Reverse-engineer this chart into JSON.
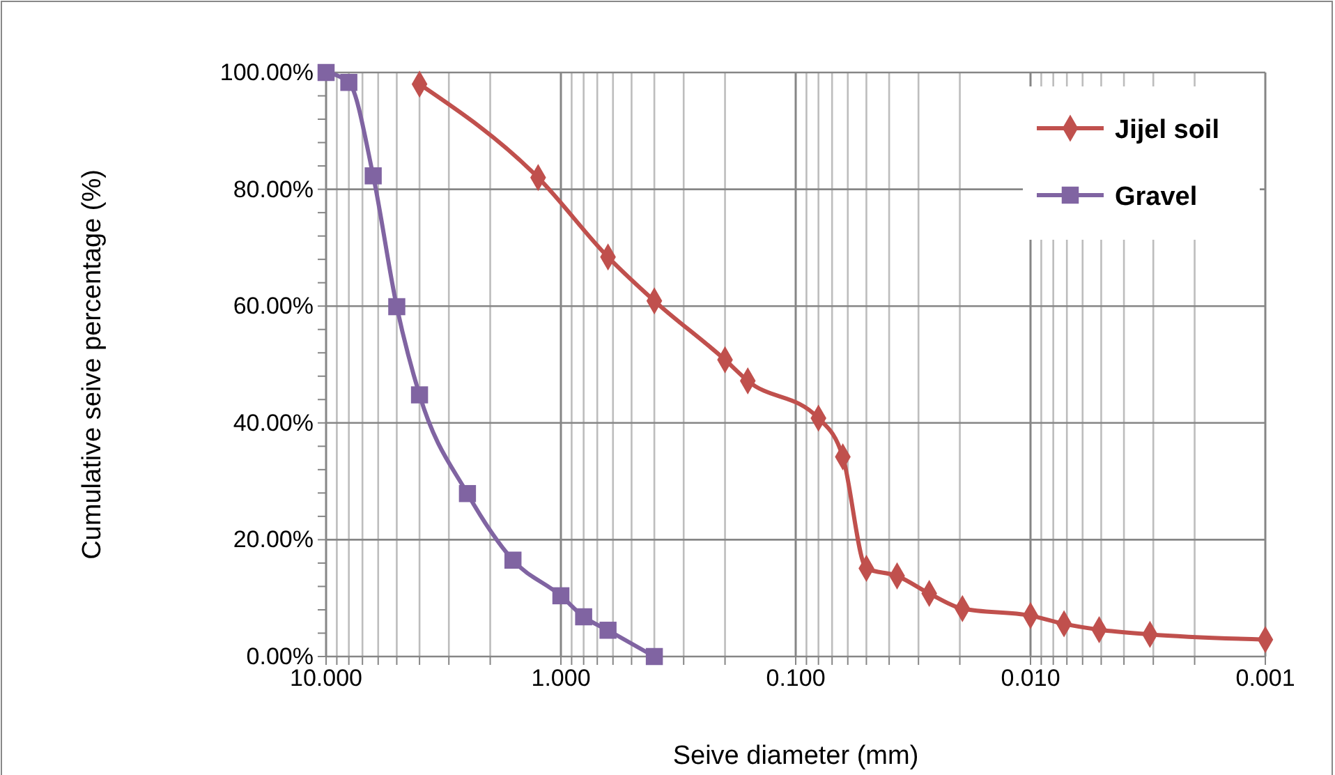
{
  "chart_data": {
    "type": "line",
    "xlabel": "Seive diameter (mm)",
    "ylabel": "Cumulative seive percentage  (%)",
    "log": "x",
    "grid": true,
    "legend": "top right",
    "line_style": "solid",
    "xlim": [
      10,
      0.001
    ],
    "xticks": [
      {
        "value": 10,
        "label": "10.000"
      },
      {
        "value": 9,
        "label": null
      },
      {
        "value": 8,
        "label": null
      },
      {
        "value": 7,
        "label": null
      },
      {
        "value": 6,
        "label": null
      },
      {
        "value": 5,
        "label": null
      },
      {
        "value": 4,
        "label": null
      },
      {
        "value": 3,
        "label": null
      },
      {
        "value": 2,
        "label": null
      },
      {
        "value": 1,
        "label": "1.000"
      },
      {
        "value": 0.9,
        "label": null
      },
      {
        "value": 0.8,
        "label": null
      },
      {
        "value": 0.7,
        "label": null
      },
      {
        "value": 0.6,
        "label": null
      },
      {
        "value": 0.5,
        "label": null
      },
      {
        "value": 0.4,
        "label": null
      },
      {
        "value": 0.3,
        "label": null
      },
      {
        "value": 0.2,
        "label": null
      },
      {
        "value": 0.1,
        "label": "0.100"
      },
      {
        "value": 0.09,
        "label": null
      },
      {
        "value": 0.08,
        "label": null
      },
      {
        "value": 0.07,
        "label": null
      },
      {
        "value": 0.06,
        "label": null
      },
      {
        "value": 0.05,
        "label": null
      },
      {
        "value": 0.04,
        "label": null
      },
      {
        "value": 0.03,
        "label": null
      },
      {
        "value": 0.02,
        "label": null
      },
      {
        "value": 0.01,
        "label": "0.010"
      },
      {
        "value": 0.009,
        "label": null
      },
      {
        "value": 0.008,
        "label": null
      },
      {
        "value": 0.007,
        "label": null
      },
      {
        "value": 0.006,
        "label": null
      },
      {
        "value": 0.005,
        "label": null
      },
      {
        "value": 0.004,
        "label": null
      },
      {
        "value": 0.003,
        "label": null
      },
      {
        "value": 0.002,
        "label": null
      },
      {
        "value": 0.001,
        "label": "0.001"
      }
    ],
    "ylim": [
      0,
      100
    ],
    "yticks": [
      {
        "value": 0,
        "label": "0.00%"
      },
      {
        "value": 4,
        "label": null
      },
      {
        "value": 8,
        "label": null
      },
      {
        "value": 12,
        "label": null
      },
      {
        "value": 16,
        "label": null
      },
      {
        "value": 20,
        "label": "20.00%"
      },
      {
        "value": 24,
        "label": null
      },
      {
        "value": 28,
        "label": null
      },
      {
        "value": 32,
        "label": null
      },
      {
        "value": 36,
        "label": null
      },
      {
        "value": 40,
        "label": "40.00%"
      },
      {
        "value": 44,
        "label": null
      },
      {
        "value": 48,
        "label": null
      },
      {
        "value": 52,
        "label": null
      },
      {
        "value": 56,
        "label": null
      },
      {
        "value": 60,
        "label": "60.00%"
      },
      {
        "value": 64,
        "label": null
      },
      {
        "value": 68,
        "label": null
      },
      {
        "value": 72,
        "label": null
      },
      {
        "value": 76,
        "label": null
      },
      {
        "value": 80,
        "label": "80.00%"
      },
      {
        "value": 84,
        "label": null
      },
      {
        "value": 88,
        "label": null
      },
      {
        "value": 92,
        "label": null
      },
      {
        "value": 96,
        "label": null
      },
      {
        "value": 100,
        "label": "100.00%"
      }
    ],
    "series": [
      {
        "name": "Jijel soil",
        "color": "#c0504d",
        "marker": "diamond",
        "x": [
          4,
          1.25,
          0.63,
          0.4,
          0.2,
          0.16,
          0.08,
          0.063,
          0.05,
          0.037,
          0.027,
          0.0195,
          0.01,
          0.0072,
          0.0051,
          0.0031,
          0.001
        ],
        "values": [
          98,
          82,
          68.4,
          60.9,
          50.8,
          47.2,
          40.8,
          34.2,
          15.1,
          13.8,
          10.8,
          8.2,
          7,
          5.6,
          4.6,
          3.8,
          2.9
        ]
      },
      {
        "name": "Gravel",
        "color": "#8064a2",
        "marker": "square",
        "x": [
          10,
          8,
          6.3,
          5,
          4,
          2.5,
          1.6,
          1,
          0.8,
          0.63,
          0.4
        ],
        "values": [
          100,
          98.3,
          82.3,
          59.9,
          44.8,
          27.9,
          16.5,
          10.4,
          6.8,
          4.5,
          0
        ]
      }
    ]
  }
}
